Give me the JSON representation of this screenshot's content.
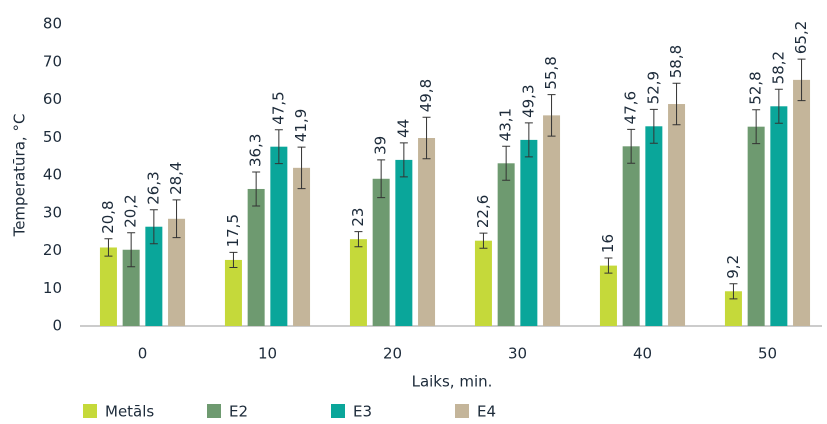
{
  "chart_data": {
    "type": "bar",
    "y_label": "Temperatūra, °C",
    "x_label": "Laiks, min.",
    "categories": [
      "0",
      "10",
      "20",
      "30",
      "40",
      "50"
    ],
    "ylim": [
      0,
      80
    ],
    "yticks": [
      0,
      10,
      20,
      30,
      40,
      50,
      60,
      70,
      80
    ],
    "grid": false,
    "legend": "bottom",
    "series": [
      {
        "name": "Metāls",
        "color": "#c5d93a",
        "values": [
          20.8,
          17.5,
          23,
          22.6,
          16,
          9.2
        ],
        "value_labels": [
          "20,8",
          "17,5",
          "23",
          "22,6",
          "16",
          "9,2"
        ],
        "errors": [
          2.3,
          2,
          2,
          2,
          2,
          2
        ]
      },
      {
        "name": "E2",
        "color": "#6e9a70",
        "values": [
          20.2,
          36.3,
          39,
          43.1,
          47.6,
          52.8
        ],
        "value_labels": [
          "20,2",
          "36,3",
          "39",
          "43,1",
          "47,6",
          "52,8"
        ],
        "errors": [
          4.5,
          4.5,
          5,
          4.5,
          4.5,
          4.5
        ]
      },
      {
        "name": "E3",
        "color": "#0aa69a",
        "values": [
          26.3,
          47.5,
          44,
          49.3,
          52.9,
          58.2
        ],
        "value_labels": [
          "26,3",
          "47,5",
          "44",
          "49,3",
          "52,9",
          "58,2"
        ],
        "errors": [
          4.5,
          4.5,
          4.5,
          4.5,
          4.5,
          4.5
        ]
      },
      {
        "name": "E4",
        "color": "#c4b59a",
        "values": [
          28.4,
          41.9,
          49.8,
          55.8,
          58.8,
          65.2
        ],
        "value_labels": [
          "28,4",
          "41,9",
          "49,8",
          "55,8",
          "58,8",
          "65,2"
        ],
        "errors": [
          5,
          5.5,
          5.5,
          5.5,
          5.5,
          5.5
        ]
      }
    ]
  }
}
